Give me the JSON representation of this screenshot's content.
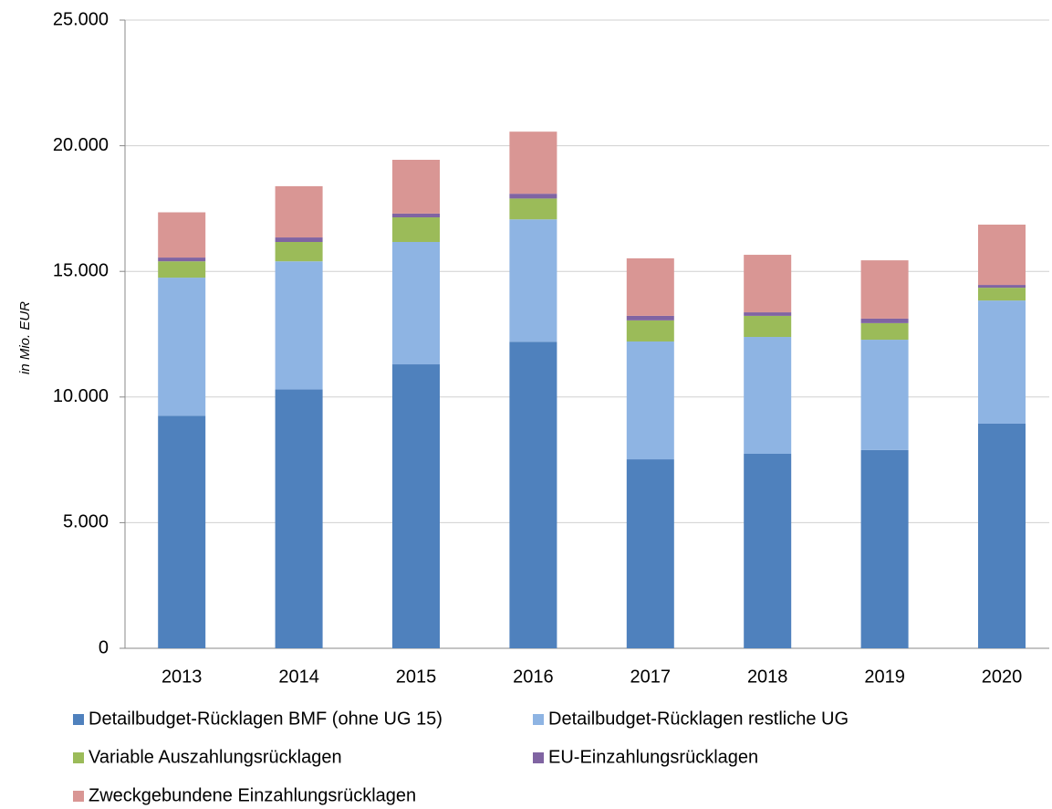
{
  "chart_data": {
    "type": "stacked_bar",
    "y_label": "in Mio. EUR",
    "categories": [
      "2013",
      "2014",
      "2015",
      "2016",
      "2017",
      "2018",
      "2019",
      "2020"
    ],
    "series": [
      {
        "name": "Detailbudget-Rücklagen BMF (ohne UG 15)",
        "color": "#4f81bd",
        "values": [
          9250,
          10300,
          11300,
          12200,
          7520,
          7740,
          7890,
          8940
        ]
      },
      {
        "name": "Detailbudget-Rücklagen restliche UG",
        "color": "#8eb4e3",
        "values": [
          5500,
          5100,
          4870,
          4870,
          4690,
          4650,
          4390,
          4900
        ]
      },
      {
        "name": "Variable Auszahlungsrücklagen",
        "color": "#9bbb59",
        "values": [
          650,
          770,
          980,
          830,
          840,
          840,
          660,
          510
        ]
      },
      {
        "name": "EU-Einzahlungsrücklagen",
        "color": "#8064a2",
        "values": [
          150,
          180,
          150,
          190,
          180,
          140,
          180,
          110
        ]
      },
      {
        "name": "Zweckgebundene Einzahlungsrücklagen",
        "color": "#d99694",
        "values": [
          1800,
          2040,
          2140,
          2470,
          2290,
          2290,
          2320,
          2400
        ]
      }
    ],
    "ylim": [
      0,
      25000
    ],
    "yticks": [
      0,
      {
        "value": 5000,
        "label": "5.000"
      },
      {
        "value": 10000,
        "label": "10.000"
      },
      {
        "value": 15000,
        "label": "15.000"
      },
      {
        "value": 20000,
        "label": "20.000"
      },
      {
        "value": 25000,
        "label": "25.000"
      }
    ],
    "grid": true
  }
}
